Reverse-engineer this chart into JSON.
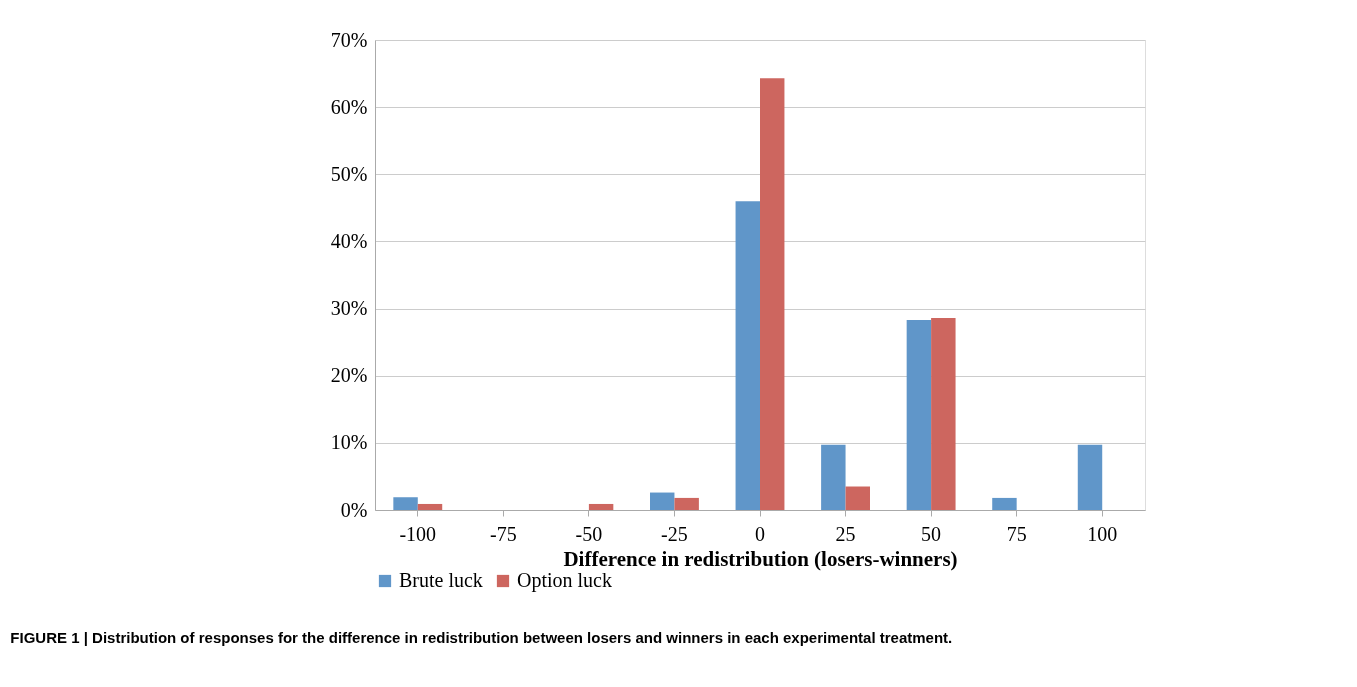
{
  "chart_data": {
    "type": "bar",
    "xlabel": "Difference in redistribution (losers-winners)",
    "categories": [
      "-100",
      "-75",
      "-50",
      "-25",
      "0",
      "25",
      "50",
      "75",
      "100"
    ],
    "series": [
      {
        "name": "Brute luck",
        "color": "#6096c9",
        "values": [
          1.9,
          0,
          0,
          2.6,
          46.0,
          9.7,
          28.3,
          1.8,
          9.7
        ]
      },
      {
        "name": "Option luck",
        "color": "#cd665f",
        "values": [
          0.9,
          0,
          0.9,
          1.8,
          64.3,
          3.5,
          28.6,
          0,
          0
        ]
      }
    ],
    "ylim": [
      0,
      70
    ],
    "yticks": [
      {
        "value": 0,
        "label": "0%"
      },
      {
        "value": 10,
        "label": "10%"
      },
      {
        "value": 20,
        "label": "20%"
      },
      {
        "value": 30,
        "label": "30%"
      },
      {
        "value": 40,
        "label": "40%"
      },
      {
        "value": 50,
        "label": "50%"
      },
      {
        "value": 60,
        "label": "60%"
      },
      {
        "value": 70,
        "label": "70%"
      }
    ],
    "grid": "y",
    "legend": "bottom",
    "annotations": [
      "FIGURE 1 | Distribution of responses for the difference in redistribution between losers and winners in each experimental treatment."
    ]
  }
}
